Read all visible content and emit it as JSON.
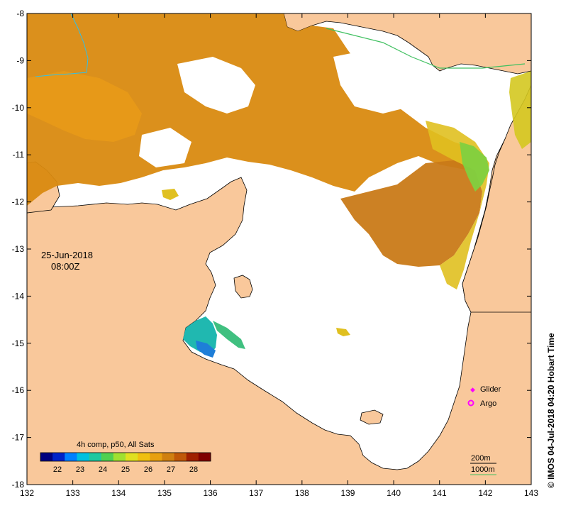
{
  "map": {
    "lon_range": [
      132,
      143
    ],
    "lat_range": [
      -18,
      -8
    ],
    "lon_ticks": [
      132,
      133,
      134,
      135,
      136,
      137,
      138,
      139,
      140,
      141,
      142,
      143
    ],
    "lat_ticks": [
      -8,
      -9,
      -10,
      -11,
      -12,
      -13,
      -14,
      -15,
      -16,
      -17,
      -18
    ],
    "lon_tick_labels": [
      "132",
      "133",
      "134",
      "135",
      "136",
      "137",
      "138",
      "139",
      "140",
      "141",
      "142",
      "143"
    ],
    "lat_tick_labels": [
      "-8",
      "-9",
      "-10",
      "-11",
      "-12",
      "-13",
      "-14",
      "-15",
      "-16",
      "-17",
      "-18"
    ],
    "land_color": "#f9c89b",
    "ocean_color": "#ffffff"
  },
  "timestamp": {
    "date": "25-Jun-2018",
    "time": "08:00Z"
  },
  "colorbar": {
    "title": "4h comp, p50, All Sats",
    "ticks": [
      "22",
      "23",
      "24",
      "25",
      "26",
      "27",
      "28"
    ],
    "range": [
      21.25,
      28.75
    ],
    "colors": [
      "#00007f",
      "#0022c8",
      "#0080ff",
      "#00c0e0",
      "#20c8a0",
      "#50d050",
      "#a0e030",
      "#e0e020",
      "#f0c010",
      "#e8a010",
      "#d08010",
      "#c05808",
      "#a02000",
      "#800000"
    ]
  },
  "legend": {
    "glider_label": "Glider",
    "argo_label": "Argo",
    "glider_color": "#ff00ff",
    "argo_color": "#ff00ff"
  },
  "contours": {
    "label_200": "200m",
    "label_1000": "1000m",
    "color_200": "#000000",
    "color_1000": "#40c060"
  },
  "credit": "© IMOS 04-Jul-2018 04:20 Hobart Time"
}
